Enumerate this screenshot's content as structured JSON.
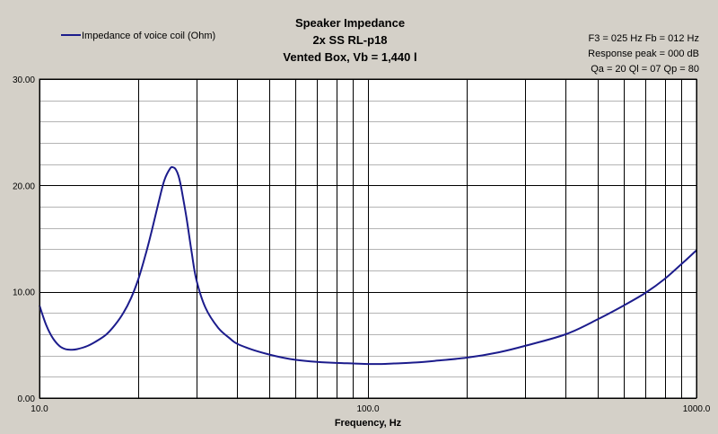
{
  "chart_data": {
    "type": "line",
    "title": [
      "Speaker Impedance",
      "2x SS RL-p18",
      "Vented Box, Vb = 1,440 l"
    ],
    "info": [
      "F3 = 025 Hz  Fb = 012 Hz",
      "Response peak = 000 dB",
      "Qa = 20  Ql = 07  Qp = 80"
    ],
    "xlabel": "Frequency, Hz",
    "ylabel": "",
    "x_scale": "log",
    "xlim": [
      10,
      1000
    ],
    "ylim": [
      0,
      30
    ],
    "x_tick_labels": [
      {
        "value": 10,
        "label": "10.0"
      },
      {
        "value": 100,
        "label": "100.0"
      },
      {
        "value": 1000,
        "label": "1000.0"
      }
    ],
    "y_tick_labels": [
      {
        "value": 0,
        "label": "0.00"
      },
      {
        "value": 10,
        "label": "10.00"
      },
      {
        "value": 20,
        "label": "20.00"
      },
      {
        "value": 30,
        "label": "30.00"
      }
    ],
    "x_gridlines": [
      10,
      20,
      30,
      40,
      50,
      60,
      70,
      80,
      90,
      100,
      200,
      300,
      400,
      500,
      600,
      700,
      800,
      900,
      1000
    ],
    "y_gridlines": [
      0,
      2,
      4,
      6,
      8,
      10,
      12,
      14,
      16,
      18,
      20,
      22,
      24,
      26,
      28,
      30
    ],
    "grid": true,
    "legend_position": "top-left",
    "colors": {
      "series": "#1c1c8c",
      "plot_bg": "#ffffff",
      "page_bg": "#d4d0c8",
      "major_grid": "#000000",
      "minor_grid": "#b4b4b4"
    },
    "series": [
      {
        "name": "Impedance of voice coil (Ohm)",
        "x": [
          10,
          10.5,
          11,
          11.5,
          12,
          12.5,
          13,
          14,
          15,
          16,
          17,
          18,
          19,
          20,
          21,
          22,
          23,
          24,
          25,
          25.5,
          26,
          26.5,
          27,
          28,
          29,
          30,
          32,
          35,
          38,
          40,
          45,
          50,
          55,
          60,
          70,
          80,
          90,
          100,
          110,
          120,
          140,
          160,
          200,
          250,
          300,
          400,
          500,
          600,
          700,
          800,
          900,
          1000
        ],
        "y": [
          8.7,
          6.8,
          5.6,
          4.9,
          4.6,
          4.55,
          4.6,
          4.9,
          5.4,
          6.0,
          6.9,
          8.0,
          9.4,
          11.2,
          13.4,
          15.8,
          18.3,
          20.5,
          21.6,
          21.7,
          21.5,
          20.9,
          19.8,
          17.0,
          13.9,
          11.2,
          8.5,
          6.6,
          5.6,
          5.1,
          4.5,
          4.1,
          3.8,
          3.6,
          3.4,
          3.3,
          3.25,
          3.2,
          3.2,
          3.25,
          3.35,
          3.5,
          3.8,
          4.3,
          4.9,
          6.0,
          7.4,
          8.7,
          9.9,
          11.2,
          12.6,
          13.9
        ]
      }
    ]
  }
}
